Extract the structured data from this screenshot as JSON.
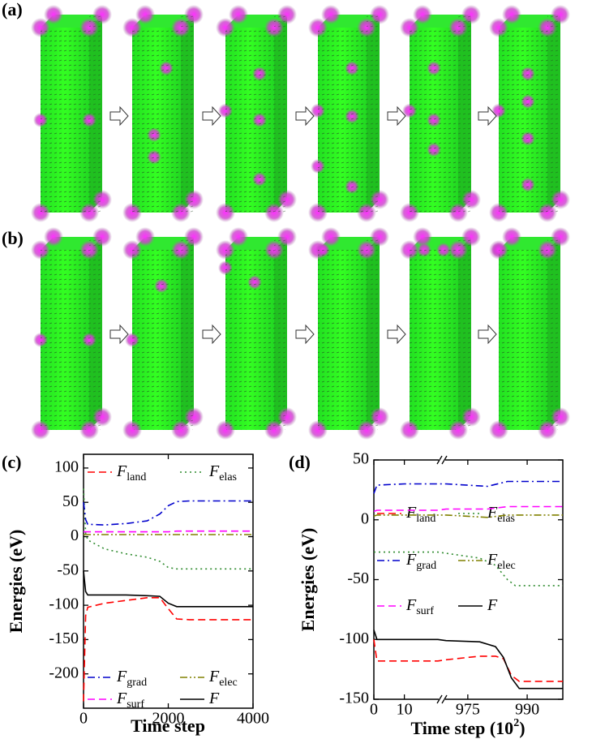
{
  "panel_labels": {
    "a": "(a)",
    "b": "(b)"
  },
  "chart_data": [
    {
      "type": "line",
      "panel_label": "(c)",
      "xlabel": "Time step",
      "ylabel": "Energies (eV)",
      "xlim": [
        0,
        4000
      ],
      "xticks": [
        0,
        2000,
        4000
      ],
      "ylim": [
        -250,
        120
      ],
      "yticks": [
        100,
        50,
        0,
        -50,
        -100,
        -150,
        -200
      ],
      "series": [
        {
          "name": "F",
          "name_sub": "land",
          "color": "#ff0000",
          "linestyle": "dashed",
          "x": [
            0,
            50,
            100,
            500,
            1000,
            1500,
            1800,
            2000,
            2200,
            2500,
            3000,
            4000
          ],
          "values": [
            -240,
            -115,
            -103,
            -97,
            -93,
            -89,
            -89,
            -105,
            -120,
            -121,
            -121,
            -121
          ]
        },
        {
          "name": "F",
          "name_sub": "elas",
          "color": "#2e8b2e",
          "linestyle": "dotted",
          "x": [
            0,
            50,
            100,
            500,
            1000,
            1500,
            1800,
            2000,
            2200,
            2500,
            3000,
            4000
          ],
          "values": [
            70,
            5,
            -5,
            -18,
            -25,
            -30,
            -36,
            -45,
            -47,
            -47,
            -47,
            -47
          ]
        },
        {
          "name": "F",
          "name_sub": "grad",
          "color": "#0000cc",
          "linestyle": "dashdot",
          "x": [
            0,
            50,
            100,
            500,
            1000,
            1500,
            1800,
            2000,
            2200,
            2500,
            3000,
            4000
          ],
          "values": [
            50,
            25,
            18,
            17,
            19,
            23,
            33,
            45,
            51,
            52,
            52,
            52
          ]
        },
        {
          "name": "F",
          "name_sub": "elec",
          "color": "#808000",
          "linestyle": "dashdotdot",
          "x": [
            0,
            50,
            100,
            500,
            1000,
            1500,
            1800,
            2000,
            2200,
            2500,
            3000,
            4000
          ],
          "values": [
            3,
            3,
            3,
            3,
            3,
            3,
            3,
            3,
            3,
            3,
            3,
            3
          ]
        },
        {
          "name": "F",
          "name_sub": "surf",
          "color": "#ff00ff",
          "linestyle": "dashed",
          "x": [
            0,
            50,
            100,
            500,
            1000,
            1500,
            1800,
            2000,
            2200,
            2500,
            3000,
            4000
          ],
          "values": [
            7,
            7,
            7,
            7,
            7,
            7,
            7,
            7,
            8,
            8,
            8,
            8
          ]
        },
        {
          "name": "F",
          "color": "#000000",
          "linestyle": "solid",
          "x": [
            0,
            50,
            100,
            500,
            1000,
            1500,
            1800,
            2000,
            2200,
            2500,
            3000,
            4000
          ],
          "values": [
            -50,
            -80,
            -85,
            -85,
            -85,
            -86,
            -87,
            -97,
            -102,
            -102,
            -102,
            -102
          ]
        }
      ]
    },
    {
      "type": "line",
      "panel_label": "(d)",
      "xlabel": "Time step (10",
      "xlabel_sup": "2",
      "xlabel_end": ")",
      "ylabel": "Energies (eV)",
      "xlim": [
        0,
        999
      ],
      "xbreak": [
        21,
        969.5
      ],
      "xticks": [
        0,
        10,
        975,
        990
      ],
      "ylim": [
        -150,
        50
      ],
      "yticks": [
        50,
        0,
        -50,
        -100,
        -150
      ],
      "series": [
        {
          "name": "F",
          "name_sub": "land",
          "color": "#ff0000",
          "linestyle": "dashed",
          "x": [
            0,
            1,
            10,
            21,
            969.5,
            978,
            982,
            984,
            986,
            988,
            999
          ],
          "values": [
            -100,
            -118,
            -118,
            -118,
            -117,
            -114,
            -114,
            -116,
            -130,
            -135,
            -135
          ]
        },
        {
          "name": "F",
          "name_sub": "elas",
          "color": "#2e8b2e",
          "linestyle": "dotted",
          "x": [
            0,
            1,
            10,
            21,
            969.5,
            978,
            982,
            985,
            987,
            999
          ],
          "values": [
            -27,
            -27,
            -27,
            -27,
            -28,
            -32,
            -38,
            -50,
            -55,
            -55
          ]
        },
        {
          "name": "F",
          "name_sub": "grad",
          "color": "#0000cc",
          "linestyle": "dashdot",
          "x": [
            0,
            1,
            10,
            21,
            969.5,
            980,
            985,
            999
          ],
          "values": [
            22,
            29,
            30,
            30,
            30,
            28,
            32,
            32
          ]
        },
        {
          "name": "F",
          "name_sub": "elec",
          "color": "#808000",
          "linestyle": "dashdotdot",
          "x": [
            0,
            1,
            10,
            21,
            969.5,
            980,
            985,
            999
          ],
          "values": [
            3,
            4,
            4,
            4,
            4,
            2,
            4,
            4
          ]
        },
        {
          "name": "F",
          "name_sub": "surf",
          "color": "#ff00ff",
          "linestyle": "dashed",
          "x": [
            0,
            1,
            10,
            21,
            969.5,
            980,
            985,
            999
          ],
          "values": [
            7,
            8,
            8,
            8,
            9,
            9,
            11,
            11
          ]
        },
        {
          "name": "F",
          "color": "#000000",
          "linestyle": "solid",
          "x": [
            0,
            1,
            10,
            21,
            969.5,
            978,
            982,
            984,
            986,
            988,
            999
          ],
          "values": [
            -92,
            -100,
            -100,
            -100,
            -101,
            -102,
            -106,
            -115,
            -132,
            -141,
            -141
          ]
        }
      ]
    }
  ]
}
